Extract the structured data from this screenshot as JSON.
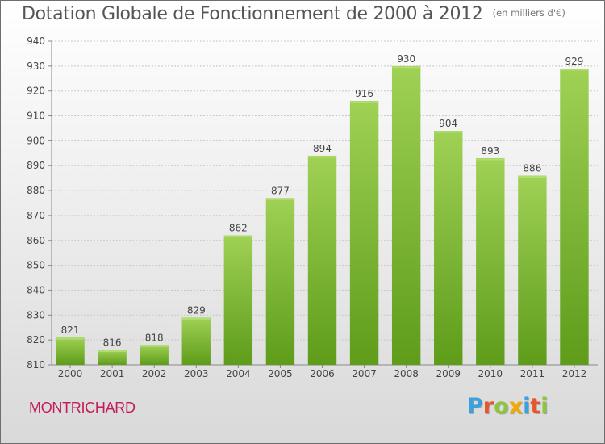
{
  "header": {
    "title": "Dotation Globale de Fonctionnement de 2000 à 2012",
    "unit": "(en milliers d'€)"
  },
  "footer": {
    "commune": "MONTRICHARD",
    "brand_letters": [
      "P",
      "r",
      "o",
      "x",
      "i",
      "t",
      "i"
    ],
    "brand_colors": [
      "#3ba0dd",
      "#e8552a",
      "#8cc63f",
      "#f2a900",
      "#3ba0dd",
      "#e8552a",
      "#8cc63f"
    ]
  },
  "chart_data": {
    "type": "bar",
    "title": "Dotation Globale de Fonctionnement de 2000 à 2012",
    "subtitle": "(en milliers d'€)",
    "categories": [
      "2000",
      "2001",
      "2002",
      "2003",
      "2004",
      "2005",
      "2006",
      "2007",
      "2008",
      "2009",
      "2010",
      "2011",
      "2012"
    ],
    "values": [
      821,
      816,
      818,
      829,
      862,
      877,
      894,
      916,
      930,
      904,
      893,
      886,
      929
    ],
    "ylim": [
      810,
      940
    ],
    "yticks": [
      810,
      820,
      830,
      840,
      850,
      860,
      870,
      880,
      890,
      900,
      910,
      920,
      930,
      940
    ],
    "grid": true,
    "bar_color_top": "#9fd155",
    "bar_color_bottom": "#5e9c1a"
  }
}
